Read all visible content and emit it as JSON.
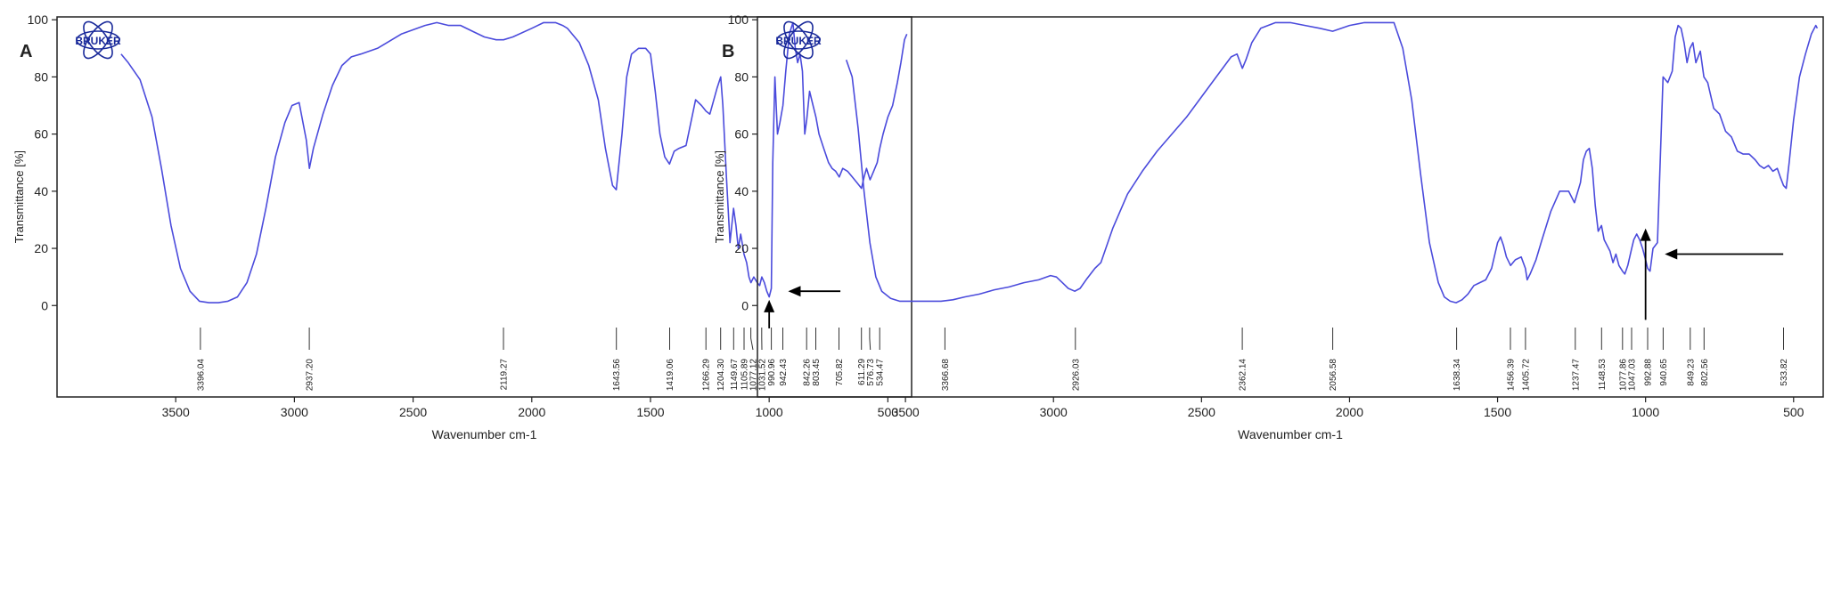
{
  "chart_data": [
    {
      "type": "line",
      "panel_label": "A",
      "logo_text": "BRUKER",
      "xlabel": "Wavenumber cm-1",
      "ylabel": "Transmittance [%]",
      "xlim": [
        4000,
        400
      ],
      "ylim": [
        -32,
        101
      ],
      "x_ticks": [
        3500,
        3000,
        2500,
        2000,
        1500,
        1000,
        500
      ],
      "y_ticks": [
        0,
        20,
        40,
        60,
        80,
        100
      ],
      "colors": {
        "line": "#4b4bdc",
        "axis": "#222222"
      },
      "series": [
        {
          "x": [
            3730,
            3700,
            3650,
            3600,
            3560,
            3520,
            3480,
            3440,
            3400,
            3360,
            3320,
            3280,
            3240,
            3200,
            3160,
            3120,
            3080,
            3040,
            3010,
            2980,
            2950,
            2937,
            2920,
            2880,
            2840,
            2800,
            2760,
            2720,
            2650,
            2550,
            2450,
            2400,
            2350,
            2300,
            2250,
            2200,
            2150,
            2119,
            2080,
            2000,
            1950,
            1900,
            1870,
            1850,
            1800,
            1760,
            1720,
            1690,
            1660,
            1644,
            1620,
            1600,
            1580,
            1550,
            1520,
            1500,
            1480,
            1460,
            1440,
            1420,
            1400,
            1380,
            1350,
            1310,
            1285,
            1266,
            1250,
            1220,
            1204,
            1195,
            1180,
            1165,
            1150,
            1140,
            1130,
            1120,
            1110,
            1106,
            1095,
            1085,
            1077,
            1065,
            1050,
            1040,
            1031,
            1020,
            1010,
            1000,
            991,
            985,
            976,
            965,
            955,
            942,
            930,
            915,
            900,
            890,
            880,
            870,
            860,
            850,
            842,
            830,
            815,
            803,
            790,
            770,
            750,
            735,
            720,
            705,
            690,
            670,
            650,
            630,
            611,
            600,
            590,
            575,
            560,
            545,
            534,
            520,
            500,
            480,
            460,
            445,
            430,
            420
          ],
          "y": [
            88,
            85,
            79,
            66,
            48,
            28,
            13,
            5,
            1.5,
            1.0,
            1.0,
            1.5,
            3,
            8,
            18,
            34,
            52,
            64,
            70,
            71,
            58,
            48,
            55,
            67,
            77,
            84,
            87,
            88,
            90,
            95,
            98,
            99,
            98,
            98,
            96,
            94,
            93,
            93,
            94,
            97,
            99,
            99,
            98,
            97,
            92,
            84,
            72,
            55,
            42,
            40.5,
            60,
            80,
            88,
            90,
            90,
            88,
            75,
            60,
            52,
            49.5,
            54,
            55,
            56,
            72,
            70,
            68,
            67,
            76,
            80,
            70,
            45,
            22,
            34,
            28,
            20,
            25,
            20,
            18,
            15,
            10,
            8,
            10,
            8,
            7,
            10,
            8,
            5,
            3,
            6,
            50,
            80,
            60,
            64,
            70,
            82,
            95,
            99,
            90,
            85,
            88,
            82,
            60,
            65,
            75,
            70,
            66,
            60,
            55,
            50,
            48,
            47,
            45,
            48,
            47,
            45,
            43,
            41,
            45,
            48,
            44,
            47,
            50,
            55,
            60,
            66,
            70,
            78,
            85,
            93,
            95
          ]
        }
      ],
      "peaks": [
        {
          "x": 3396.04,
          "label": "3396.04"
        },
        {
          "x": 2937.2,
          "label": "2937.20"
        },
        {
          "x": 2119.27,
          "label": "2119.27"
        },
        {
          "x": 1643.56,
          "label": "1643.56"
        },
        {
          "x": 1419.06,
          "label": "1419.06"
        },
        {
          "x": 1266.29,
          "label": "1266.29"
        },
        {
          "x": 1204.3,
          "label": "1204.30"
        },
        {
          "x": 1149.67,
          "label": "1149.67"
        },
        {
          "x": 1105.89,
          "label": "1105.89"
        },
        {
          "x": 1077.12,
          "label": "1077.12"
        },
        {
          "x": 1031.52,
          "label": "1031.52"
        },
        {
          "x": 990.96,
          "label": "990.96"
        },
        {
          "x": 942.43,
          "label": "942.43"
        },
        {
          "x": 842.26,
          "label": "842.26"
        },
        {
          "x": 803.45,
          "label": "803.45"
        },
        {
          "x": 705.82,
          "label": "705.82"
        },
        {
          "x": 611.29,
          "label": "611.29"
        },
        {
          "x": 576.73,
          "label": "576.73"
        },
        {
          "x": 534.47,
          "label": "534.47"
        }
      ],
      "arrows": [
        {
          "direction": "left",
          "x_start": 700,
          "x_end": 920,
          "y": 5
        },
        {
          "direction": "up",
          "x": 1000,
          "y_start": -8,
          "y_end": 2
        }
      ]
    },
    {
      "type": "line",
      "panel_label": "B",
      "logo_text": "BRUKER",
      "xlabel": "Wavenumber cm-1",
      "ylabel": "Transmittance [%]",
      "xlim": [
        4000,
        400
      ],
      "ylim": [
        -32,
        101
      ],
      "x_ticks": [
        3500,
        3000,
        2500,
        2000,
        1500,
        1000,
        500
      ],
      "y_ticks": [
        0,
        20,
        40,
        60,
        80,
        100
      ],
      "colors": {
        "line": "#4b4bdc",
        "axis": "#222222"
      },
      "series": [
        {
          "x": [
            3700,
            3680,
            3660,
            3640,
            3620,
            3600,
            3580,
            3550,
            3520,
            3490,
            3460,
            3420,
            3380,
            3340,
            3300,
            3250,
            3200,
            3150,
            3100,
            3050,
            3010,
            2990,
            2970,
            2950,
            2928,
            2910,
            2890,
            2860,
            2840,
            2800,
            2750,
            2700,
            2650,
            2600,
            2550,
            2500,
            2450,
            2400,
            2380,
            2362,
            2350,
            2330,
            2300,
            2250,
            2200,
            2150,
            2100,
            2057,
            2000,
            1950,
            1900,
            1870,
            1850,
            1820,
            1790,
            1760,
            1730,
            1700,
            1680,
            1660,
            1640,
            1620,
            1600,
            1580,
            1560,
            1540,
            1520,
            1500,
            1490,
            1480,
            1470,
            1456,
            1440,
            1420,
            1406,
            1400,
            1390,
            1370,
            1350,
            1320,
            1290,
            1260,
            1240,
            1220,
            1210,
            1200,
            1190,
            1180,
            1170,
            1160,
            1149,
            1140,
            1120,
            1110,
            1100,
            1090,
            1078,
            1070,
            1060,
            1047,
            1040,
            1030,
            1020,
            1010,
            1000,
            993,
            985,
            975,
            960,
            941,
            925,
            910,
            900,
            890,
            880,
            870,
            860,
            850,
            840,
            830,
            815,
            803,
            790,
            770,
            750,
            730,
            710,
            690,
            670,
            650,
            630,
            615,
            600,
            585,
            570,
            555,
            545,
            534,
            525,
            515,
            500,
            480,
            460,
            440,
            425,
            420
          ],
          "y": [
            86,
            80,
            62,
            40,
            22,
            10,
            5,
            2.5,
            1.5,
            1.5,
            1.5,
            1.5,
            1.5,
            2,
            3,
            4,
            5.5,
            6.5,
            8,
            9,
            10.5,
            10,
            8,
            6,
            5,
            6,
            9,
            13,
            15,
            27,
            39,
            47,
            54,
            60,
            66,
            73,
            80,
            87,
            88,
            83,
            86,
            92,
            97,
            99,
            99,
            98,
            97,
            96,
            98,
            99,
            99,
            99,
            99,
            90,
            72,
            46,
            22,
            8,
            3,
            1.5,
            1.0,
            2,
            4,
            7,
            8,
            9,
            13,
            22,
            24,
            21,
            17,
            14,
            16,
            17,
            13,
            9,
            11,
            16,
            23,
            33,
            40,
            40,
            36,
            43,
            51,
            54,
            55,
            48,
            35,
            26,
            28,
            23,
            19,
            15,
            18,
            14,
            12,
            11,
            14,
            20,
            23,
            25,
            23,
            20,
            16,
            13,
            12,
            20,
            22,
            80,
            78,
            82,
            94,
            98,
            97,
            92,
            85,
            90,
            92,
            85,
            89,
            80,
            78,
            69,
            67,
            61,
            59,
            54,
            53,
            53,
            51,
            49,
            48,
            49,
            47,
            48,
            45,
            42,
            41,
            50,
            65,
            80,
            88,
            95,
            98,
            97
          ]
        }
      ],
      "peaks": [
        {
          "x": 3366.68,
          "label": "3366.68"
        },
        {
          "x": 2926.03,
          "label": "2926.03"
        },
        {
          "x": 2362.14,
          "label": "2362.14"
        },
        {
          "x": 2056.58,
          "label": "2056.58"
        },
        {
          "x": 1638.34,
          "label": "1638.34"
        },
        {
          "x": 1456.39,
          "label": "1456.39"
        },
        {
          "x": 1405.72,
          "label": "1405.72"
        },
        {
          "x": 1237.47,
          "label": "1237.47"
        },
        {
          "x": 1148.53,
          "label": "1148.53"
        },
        {
          "x": 1077.86,
          "label": "1077.86"
        },
        {
          "x": 1047.03,
          "label": "1047.03"
        },
        {
          "x": 992.88,
          "label": "992.88"
        },
        {
          "x": 940.65,
          "label": "940.65"
        },
        {
          "x": 849.23,
          "label": "849.23"
        },
        {
          "x": 802.56,
          "label": "802.56"
        },
        {
          "x": 533.82,
          "label": "533.82"
        }
      ],
      "arrows": [
        {
          "direction": "left",
          "x_start": 535,
          "x_end": 935,
          "y": 18
        },
        {
          "direction": "up",
          "x": 1000,
          "y_start": -5,
          "y_end": 27
        }
      ]
    }
  ]
}
